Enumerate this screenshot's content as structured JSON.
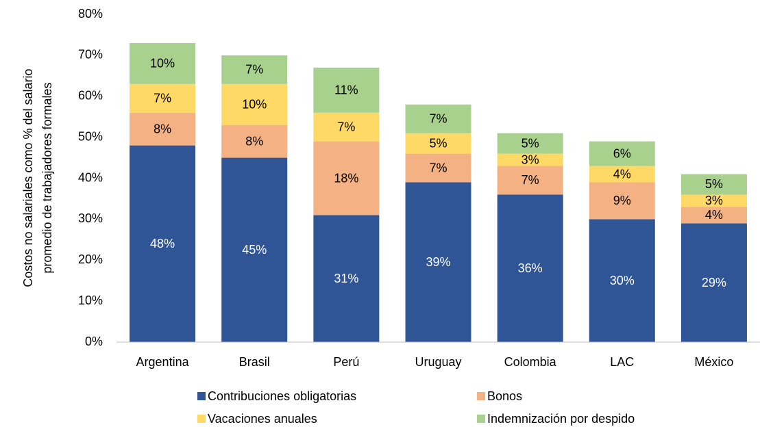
{
  "chart_data": {
    "type": "stacked_bar",
    "y_label": [
      "Costos no salariales como % del salario",
      "promedio de trabajadores formales"
    ],
    "categories": [
      "Argentina",
      "Brasil",
      "Perú",
      "Uruguay",
      "Colombia",
      "LAC",
      "México"
    ],
    "series": [
      {
        "name": "Contribuciones obligatorias",
        "color": "#2f5597",
        "label_color": "#ffffff",
        "values": [
          48,
          45,
          31,
          39,
          36,
          30,
          29
        ],
        "value_labels": [
          "48%",
          "45%",
          "31%",
          "39%",
          "36%",
          "30%",
          "29%"
        ]
      },
      {
        "name": "Bonos",
        "color": "#f4b183",
        "label_color": "#000000",
        "values": [
          8,
          8,
          18,
          7,
          7,
          9,
          4
        ],
        "value_labels": [
          "8%",
          "8%",
          "18%",
          "7%",
          "7%",
          "9%",
          "4%"
        ]
      },
      {
        "name": "Vacaciones anuales",
        "color": "#ffd966",
        "label_color": "#000000",
        "values": [
          7,
          10,
          7,
          5,
          3,
          4,
          3
        ],
        "value_labels": [
          "7%",
          "10%",
          "7%",
          "5%",
          "3%",
          "4%",
          "3%"
        ]
      },
      {
        "name": "Indemnización por despido",
        "color": "#a9d18e",
        "label_color": "#000000",
        "values": [
          10,
          7,
          11,
          7,
          5,
          6,
          5
        ],
        "value_labels": [
          "10%",
          "7%",
          "11%",
          "7%",
          "5%",
          "6%",
          "5%"
        ]
      }
    ],
    "ylim": [
      0,
      80
    ],
    "yticks": [
      {
        "value": 0,
        "label": "0%"
      },
      {
        "value": 10,
        "label": "10%"
      },
      {
        "value": 20,
        "label": "20%"
      },
      {
        "value": 30,
        "label": "30%"
      },
      {
        "value": 40,
        "label": "40%"
      },
      {
        "value": 50,
        "label": "50%"
      },
      {
        "value": 60,
        "label": "60%"
      },
      {
        "value": 70,
        "label": "70%"
      },
      {
        "value": 80,
        "label": "80%"
      }
    ],
    "grid": false,
    "legend": "bottom"
  }
}
